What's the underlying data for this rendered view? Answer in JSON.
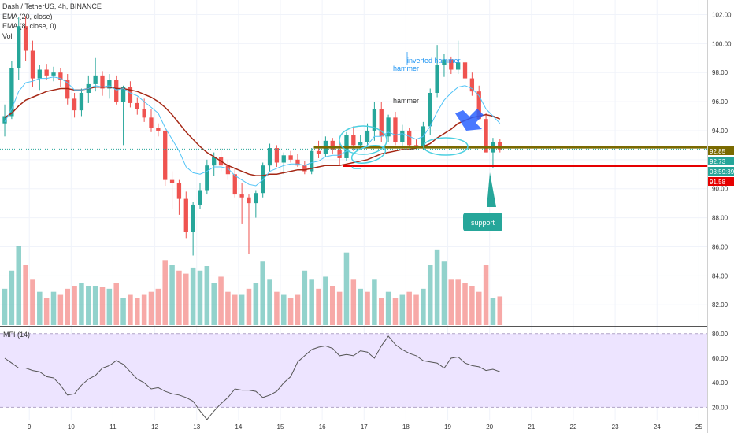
{
  "header": {
    "symbol_line": "Dash / TetherUS, 4h, BINANCE",
    "ema20": "EMA (20, close)",
    "ema8": "EMA (8, close, 0)",
    "vol": "Vol"
  },
  "mfi_label": "MFI (14)",
  "chart_data": {
    "type": "candlestick",
    "x_tick_labels": [
      "9",
      "10",
      "11",
      "12",
      "13",
      "14",
      "15",
      "16",
      "17",
      "18",
      "19",
      "20",
      "21",
      "22",
      "23",
      "24",
      "25"
    ],
    "x_ticks": [
      9,
      10,
      11,
      12,
      13,
      14,
      15,
      16,
      17,
      18,
      19,
      20,
      21,
      22,
      23,
      24,
      25
    ],
    "x_range": [
      8.3,
      25.2
    ],
    "price_axis": {
      "ticks": [
        82,
        84,
        86,
        88,
        90,
        92,
        94,
        96,
        98,
        100,
        102
      ],
      "tick_labels": [
        "82.00",
        "84.00",
        "86.00",
        "88.00",
        "90.00",
        "92.00",
        "94.00",
        "96.00",
        "98.00",
        "100.00",
        "102.00"
      ],
      "range": [
        80.6,
        103.0
      ]
    },
    "mfi_axis": {
      "ticks": [
        20,
        40,
        60,
        80
      ],
      "tick_labels": [
        "20.00",
        "40.00",
        "60.00",
        "80.00"
      ],
      "range": [
        10,
        85
      ],
      "band": [
        20,
        80
      ]
    },
    "candles": [
      {
        "o": 94.5,
        "h": 95.8,
        "l": 93.6,
        "c": 95.0
      },
      {
        "o": 95.0,
        "h": 98.8,
        "l": 94.8,
        "c": 98.3
      },
      {
        "o": 98.3,
        "h": 101.8,
        "l": 97.5,
        "c": 101.2
      },
      {
        "o": 101.2,
        "h": 101.9,
        "l": 98.8,
        "c": 99.5
      },
      {
        "o": 99.5,
        "h": 100.2,
        "l": 97.0,
        "c": 97.6
      },
      {
        "o": 97.6,
        "h": 98.5,
        "l": 96.8,
        "c": 98.2
      },
      {
        "o": 98.2,
        "h": 98.6,
        "l": 97.5,
        "c": 97.8
      },
      {
        "o": 97.8,
        "h": 98.4,
        "l": 97.4,
        "c": 98.0
      },
      {
        "o": 98.0,
        "h": 98.3,
        "l": 97.0,
        "c": 97.5
      },
      {
        "o": 97.5,
        "h": 97.9,
        "l": 95.8,
        "c": 96.2
      },
      {
        "o": 96.2,
        "h": 96.6,
        "l": 94.9,
        "c": 95.4
      },
      {
        "o": 95.4,
        "h": 96.9,
        "l": 95.0,
        "c": 96.6
      },
      {
        "o": 96.6,
        "h": 97.8,
        "l": 95.9,
        "c": 97.2
      },
      {
        "o": 97.2,
        "h": 99.0,
        "l": 96.7,
        "c": 97.8
      },
      {
        "o": 97.8,
        "h": 98.1,
        "l": 96.4,
        "c": 96.9
      },
      {
        "o": 96.9,
        "h": 97.9,
        "l": 96.2,
        "c": 97.5
      },
      {
        "o": 97.5,
        "h": 97.8,
        "l": 95.8,
        "c": 96.0
      },
      {
        "o": 96.0,
        "h": 97.1,
        "l": 93.0,
        "c": 97.0
      },
      {
        "o": 97.0,
        "h": 97.4,
        "l": 95.6,
        "c": 95.9
      },
      {
        "o": 95.9,
        "h": 96.3,
        "l": 95.1,
        "c": 95.5
      },
      {
        "o": 95.5,
        "h": 96.2,
        "l": 94.6,
        "c": 94.9
      },
      {
        "o": 94.9,
        "h": 95.5,
        "l": 93.9,
        "c": 94.2
      },
      {
        "o": 94.2,
        "h": 94.5,
        "l": 93.6,
        "c": 94.0
      },
      {
        "o": 94.0,
        "h": 94.2,
        "l": 90.2,
        "c": 90.6
      },
      {
        "o": 90.6,
        "h": 91.2,
        "l": 88.6,
        "c": 90.4
      },
      {
        "o": 90.4,
        "h": 90.6,
        "l": 88.2,
        "c": 89.3
      },
      {
        "o": 89.3,
        "h": 89.8,
        "l": 86.6,
        "c": 87.0
      },
      {
        "o": 87.0,
        "h": 89.1,
        "l": 85.4,
        "c": 88.9
      },
      {
        "o": 88.9,
        "h": 90.4,
        "l": 88.6,
        "c": 89.9
      },
      {
        "o": 89.9,
        "h": 92.0,
        "l": 89.6,
        "c": 91.6
      },
      {
        "o": 91.6,
        "h": 92.5,
        "l": 90.9,
        "c": 92.2
      },
      {
        "o": 92.2,
        "h": 92.8,
        "l": 91.2,
        "c": 91.6
      },
      {
        "o": 91.6,
        "h": 92.0,
        "l": 90.6,
        "c": 91.0
      },
      {
        "o": 91.0,
        "h": 91.4,
        "l": 89.4,
        "c": 89.6
      },
      {
        "o": 89.6,
        "h": 90.4,
        "l": 87.6,
        "c": 89.4
      },
      {
        "o": 89.4,
        "h": 89.6,
        "l": 85.5,
        "c": 89.0
      },
      {
        "o": 89.0,
        "h": 89.9,
        "l": 88.0,
        "c": 89.7
      },
      {
        "o": 89.7,
        "h": 91.8,
        "l": 89.4,
        "c": 91.6
      },
      {
        "o": 91.6,
        "h": 93.1,
        "l": 91.2,
        "c": 92.8
      },
      {
        "o": 92.8,
        "h": 93.0,
        "l": 91.5,
        "c": 91.8
      },
      {
        "o": 91.8,
        "h": 92.5,
        "l": 91.0,
        "c": 92.3
      },
      {
        "o": 92.3,
        "h": 92.6,
        "l": 91.8,
        "c": 92.0
      },
      {
        "o": 92.0,
        "h": 92.4,
        "l": 91.5,
        "c": 91.6
      },
      {
        "o": 91.6,
        "h": 91.9,
        "l": 91.0,
        "c": 91.2
      },
      {
        "o": 91.2,
        "h": 92.8,
        "l": 91.0,
        "c": 92.6
      },
      {
        "o": 92.6,
        "h": 93.3,
        "l": 92.1,
        "c": 92.4
      },
      {
        "o": 92.4,
        "h": 93.6,
        "l": 92.2,
        "c": 93.3
      },
      {
        "o": 93.3,
        "h": 93.5,
        "l": 92.4,
        "c": 92.7
      },
      {
        "o": 92.7,
        "h": 93.1,
        "l": 91.6,
        "c": 92.1
      },
      {
        "o": 92.1,
        "h": 93.9,
        "l": 91.9,
        "c": 93.7
      },
      {
        "o": 93.7,
        "h": 94.3,
        "l": 92.6,
        "c": 93.0
      },
      {
        "o": 93.0,
        "h": 93.7,
        "l": 92.8,
        "c": 93.2
      },
      {
        "o": 93.2,
        "h": 94.5,
        "l": 92.9,
        "c": 94.0
      },
      {
        "o": 94.0,
        "h": 96.0,
        "l": 93.3,
        "c": 95.5
      },
      {
        "o": 95.5,
        "h": 96.0,
        "l": 93.2,
        "c": 93.6
      },
      {
        "o": 93.6,
        "h": 95.1,
        "l": 93.2,
        "c": 94.9
      },
      {
        "o": 94.9,
        "h": 95.3,
        "l": 93.0,
        "c": 93.2
      },
      {
        "o": 93.2,
        "h": 94.4,
        "l": 92.7,
        "c": 94.0
      },
      {
        "o": 94.0,
        "h": 94.2,
        "l": 92.8,
        "c": 93.0
      },
      {
        "o": 93.0,
        "h": 93.4,
        "l": 92.7,
        "c": 92.9
      },
      {
        "o": 92.9,
        "h": 94.6,
        "l": 92.7,
        "c": 94.3
      },
      {
        "o": 94.3,
        "h": 96.9,
        "l": 93.7,
        "c": 96.6
      },
      {
        "o": 96.6,
        "h": 99.9,
        "l": 96.3,
        "c": 98.5
      },
      {
        "o": 98.5,
        "h": 99.3,
        "l": 97.7,
        "c": 98.9
      },
      {
        "o": 98.9,
        "h": 99.1,
        "l": 97.9,
        "c": 98.2
      },
      {
        "o": 98.2,
        "h": 100.2,
        "l": 97.9,
        "c": 98.7
      },
      {
        "o": 98.7,
        "h": 98.9,
        "l": 97.3,
        "c": 97.6
      },
      {
        "o": 97.6,
        "h": 98.0,
        "l": 96.4,
        "c": 96.7
      },
      {
        "o": 96.7,
        "h": 97.1,
        "l": 94.8,
        "c": 94.8
      },
      {
        "o": 94.8,
        "h": 95.2,
        "l": 92.5,
        "c": 92.5
      },
      {
        "o": 92.5,
        "h": 93.5,
        "l": 91.4,
        "c": 93.2
      },
      {
        "o": 93.2,
        "h": 93.4,
        "l": 92.5,
        "c": 92.7
      }
    ],
    "volume": [
      {
        "v": 120,
        "up": true
      },
      {
        "v": 180,
        "up": true
      },
      {
        "v": 260,
        "up": true
      },
      {
        "v": 200,
        "up": false
      },
      {
        "v": 150,
        "up": false
      },
      {
        "v": 110,
        "up": true
      },
      {
        "v": 90,
        "up": false
      },
      {
        "v": 110,
        "up": true
      },
      {
        "v": 100,
        "up": false
      },
      {
        "v": 120,
        "up": false
      },
      {
        "v": 130,
        "up": false
      },
      {
        "v": 140,
        "up": true
      },
      {
        "v": 130,
        "up": true
      },
      {
        "v": 130,
        "up": true
      },
      {
        "v": 125,
        "up": false
      },
      {
        "v": 120,
        "up": true
      },
      {
        "v": 140,
        "up": false
      },
      {
        "v": 90,
        "up": true
      },
      {
        "v": 100,
        "up": false
      },
      {
        "v": 90,
        "up": false
      },
      {
        "v": 100,
        "up": false
      },
      {
        "v": 110,
        "up": false
      },
      {
        "v": 120,
        "up": false
      },
      {
        "v": 215,
        "up": false
      },
      {
        "v": 200,
        "up": true
      },
      {
        "v": 180,
        "up": false
      },
      {
        "v": 170,
        "up": false
      },
      {
        "v": 190,
        "up": true
      },
      {
        "v": 180,
        "up": true
      },
      {
        "v": 195,
        "up": true
      },
      {
        "v": 140,
        "up": true
      },
      {
        "v": 160,
        "up": false
      },
      {
        "v": 110,
        "up": false
      },
      {
        "v": 100,
        "up": false
      },
      {
        "v": 100,
        "up": true
      },
      {
        "v": 120,
        "up": false
      },
      {
        "v": 140,
        "up": true
      },
      {
        "v": 210,
        "up": true
      },
      {
        "v": 150,
        "up": true
      },
      {
        "v": 110,
        "up": false
      },
      {
        "v": 100,
        "up": true
      },
      {
        "v": 90,
        "up": false
      },
      {
        "v": 100,
        "up": false
      },
      {
        "v": 180,
        "up": true
      },
      {
        "v": 150,
        "up": true
      },
      {
        "v": 120,
        "up": false
      },
      {
        "v": 160,
        "up": true
      },
      {
        "v": 130,
        "up": false
      },
      {
        "v": 110,
        "up": false
      },
      {
        "v": 240,
        "up": true
      },
      {
        "v": 150,
        "up": false
      },
      {
        "v": 120,
        "up": true
      },
      {
        "v": 110,
        "up": false
      },
      {
        "v": 150,
        "up": true
      },
      {
        "v": 90,
        "up": false
      },
      {
        "v": 110,
        "up": true
      },
      {
        "v": 90,
        "up": false
      },
      {
        "v": 100,
        "up": true
      },
      {
        "v": 110,
        "up": false
      },
      {
        "v": 100,
        "up": false
      },
      {
        "v": 120,
        "up": true
      },
      {
        "v": 200,
        "up": true
      },
      {
        "v": 250,
        "up": true
      },
      {
        "v": 210,
        "up": true
      },
      {
        "v": 150,
        "up": false
      },
      {
        "v": 150,
        "up": false
      },
      {
        "v": 140,
        "up": false
      },
      {
        "v": 130,
        "up": false
      },
      {
        "v": 110,
        "up": false
      },
      {
        "v": 200,
        "up": false
      },
      {
        "v": 90,
        "up": true
      },
      {
        "v": 95,
        "up": false
      }
    ],
    "mfi": [
      60,
      56,
      52,
      52,
      50,
      49,
      45,
      44,
      38,
      30,
      31,
      38,
      43,
      46,
      52,
      54,
      58,
      55,
      49,
      43,
      40,
      35,
      36,
      33,
      31,
      30,
      28,
      25,
      17,
      10,
      17,
      23,
      28,
      35,
      34,
      34,
      33,
      28,
      30,
      33,
      40,
      45,
      57,
      62,
      67,
      69,
      70,
      68,
      62,
      63,
      62,
      66,
      65,
      60,
      70,
      78,
      71,
      67,
      64,
      62,
      58,
      57,
      56,
      52,
      60,
      61,
      56,
      54,
      53,
      50,
      51,
      49
    ],
    "ema20": [
      94.9,
      95.2,
      95.7,
      96.1,
      96.3,
      96.5,
      96.7,
      96.8,
      96.9,
      96.9,
      96.8,
      96.8,
      96.9,
      97.0,
      97.0,
      97.0,
      96.9,
      96.9,
      96.8,
      96.7,
      96.5,
      96.3,
      96.0,
      95.6,
      95.1,
      94.5,
      93.9,
      93.4,
      92.9,
      92.5,
      92.2,
      91.9,
      91.6,
      91.4,
      91.2,
      91.0,
      90.9,
      90.9,
      91.0,
      91.0,
      91.1,
      91.2,
      91.3,
      91.3,
      91.4,
      91.5,
      91.6,
      91.6,
      91.6,
      91.7,
      91.8,
      91.9,
      92.0,
      92.2,
      92.4,
      92.5,
      92.6,
      92.7,
      92.7,
      92.8,
      92.9,
      93.1,
      93.5,
      93.8,
      94.1,
      94.5,
      94.7,
      94.9,
      95.0,
      95.1,
      95.0,
      94.8
    ],
    "ema8": [
      94.6,
      95.5,
      96.7,
      97.3,
      97.4,
      97.6,
      97.6,
      97.7,
      97.6,
      97.3,
      96.8,
      96.8,
      96.9,
      97.1,
      97.0,
      97.1,
      96.8,
      96.9,
      96.6,
      96.4,
      96.0,
      95.6,
      95.2,
      94.2,
      93.4,
      92.6,
      91.5,
      91.1,
      91.0,
      91.2,
      91.5,
      91.5,
      91.4,
      90.9,
      90.6,
      90.3,
      90.2,
      90.6,
      91.2,
      91.4,
      91.6,
      91.7,
      91.7,
      91.6,
      91.8,
      91.9,
      92.2,
      92.3,
      92.3,
      92.6,
      92.7,
      92.7,
      93.0,
      93.6,
      93.6,
      93.9,
      93.7,
      93.8,
      93.6,
      93.4,
      93.6,
      94.3,
      95.3,
      96.1,
      96.6,
      97.0,
      97.1,
      96.9,
      96.4,
      95.5,
      95.0,
      94.5
    ],
    "price_tags": [
      {
        "label": "92.85",
        "value": 92.85,
        "color": "#7a6a00"
      },
      {
        "label": "92.73",
        "value": 92.73,
        "color": "#26a69a"
      },
      {
        "label": "03:59:39",
        "value": 91.95,
        "color": "#26a69a"
      },
      {
        "label": "91.58",
        "value": 91.58,
        "color": "#e60000"
      }
    ],
    "horizontal_lines": [
      {
        "value": 92.85,
        "color": "#7a6a00",
        "x_from": 15.8
      },
      {
        "value": 91.58,
        "color": "#e60000",
        "x_from": 16.5
      }
    ],
    "annotations": [
      {
        "text": "inverted hammer",
        "color": "#2196f3"
      },
      {
        "text": "hammer",
        "color": "#2196f3"
      },
      {
        "text": "hammer",
        "color": "#333333"
      },
      {
        "text": "support",
        "color": "#ffffff",
        "bg": "#26a69a"
      }
    ],
    "colors": {
      "up": "#26a69a",
      "down": "#ef5350",
      "ema20": "#a52714",
      "ema8": "#4fc3f7",
      "mfi_line": "#555555",
      "mfi_band": "#ede4ff"
    }
  }
}
